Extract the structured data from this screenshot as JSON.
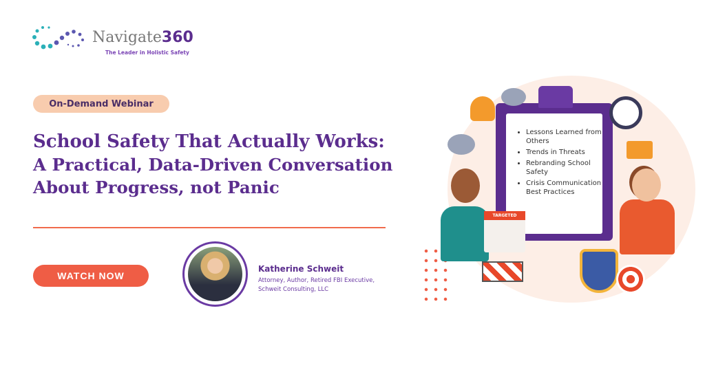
{
  "brand": {
    "name_text": "Navigate",
    "name_number": "360",
    "tagline": "The Leader in Holistic Safety"
  },
  "badge": "On-Demand Webinar",
  "title": {
    "line1": "School Safety That Actually Works:",
    "line2": "A Practical, Data-Driven Conversation",
    "line3": "About Progress, not Panic"
  },
  "cta": "WATCH NOW",
  "speaker": {
    "name": "Katherine Schweit",
    "role_line1": "Attorney, Author, Retired FBI Executive,",
    "role_line2": "Schweit Consulting, LLC"
  },
  "illustration": {
    "topics": [
      "Lessons Learned from Others",
      "Trends in Threats",
      "Rebranding School Safety",
      "Crisis Communication Best Practices"
    ],
    "sign_text": "TARGETED"
  },
  "colors": {
    "purple": "#5b2d8e",
    "orange": "#ef5d45",
    "peach": "#f8ccae"
  }
}
